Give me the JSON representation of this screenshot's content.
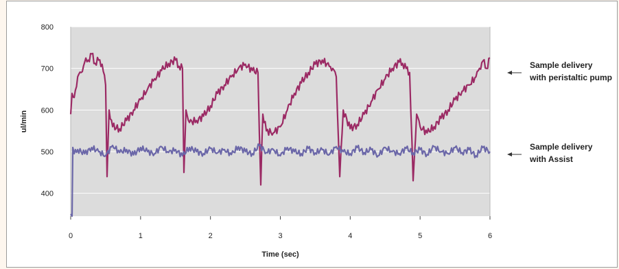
{
  "chart_data": {
    "type": "line",
    "title": "",
    "xlabel": "Time (sec)",
    "ylabel": "ul/min",
    "xlim": [
      0,
      6
    ],
    "ylim": [
      345,
      800
    ],
    "x_ticks": [
      "0",
      "1",
      "2",
      "3",
      "4",
      "5",
      "6"
    ],
    "y_ticks": [
      "400",
      "500",
      "600",
      "700",
      "800"
    ],
    "grid": true,
    "colors": {
      "plot_bg": "#dcdcdc",
      "peristaltic": "#9b2a64",
      "assist": "#6b67a8"
    },
    "series": [
      {
        "name": "Sample delivery with peristaltic pump",
        "legend_lines": [
          "Sample delivery",
          "with peristaltic pump"
        ],
        "x": [
          0,
          0.02,
          0.05,
          0.1,
          0.15,
          0.2,
          0.25,
          0.3,
          0.35,
          0.4,
          0.45,
          0.5,
          0.52,
          0.55,
          0.6,
          0.7,
          0.8,
          0.9,
          1.0,
          1.1,
          1.2,
          1.3,
          1.4,
          1.5,
          1.55,
          1.6,
          1.62,
          1.65,
          1.7,
          1.8,
          1.9,
          2.0,
          2.1,
          2.2,
          2.3,
          2.4,
          2.5,
          2.6,
          2.68,
          2.72,
          2.75,
          2.8,
          2.9,
          3.0,
          3.1,
          3.2,
          3.3,
          3.4,
          3.5,
          3.6,
          3.7,
          3.75,
          3.8,
          3.85,
          3.9,
          4.0,
          4.1,
          4.2,
          4.3,
          4.4,
          4.5,
          4.6,
          4.7,
          4.75,
          4.8,
          4.85,
          4.9,
          4.95,
          5.0,
          5.1,
          5.2,
          5.3,
          5.4,
          5.5,
          5.6,
          5.7,
          5.8,
          5.85,
          5.9,
          5.95,
          6.0
        ],
        "y": [
          590,
          640,
          630,
          680,
          690,
          715,
          720,
          735,
          712,
          720,
          710,
          660,
          440,
          600,
          560,
          555,
          575,
          600,
          625,
          650,
          675,
          695,
          712,
          720,
          705,
          700,
          450,
          600,
          570,
          575,
          585,
          610,
          640,
          660,
          680,
          700,
          710,
          695,
          690,
          420,
          590,
          550,
          545,
          560,
          600,
          640,
          665,
          690,
          710,
          720,
          705,
          700,
          680,
          440,
          600,
          555,
          565,
          590,
          620,
          650,
          675,
          700,
          715,
          712,
          700,
          690,
          430,
          590,
          560,
          545,
          560,
          580,
          600,
          625,
          645,
          660,
          680,
          700,
          718,
          700,
          725
        ]
      },
      {
        "name": "Sample delivery with Assist",
        "legend_lines": [
          "Sample delivery",
          "with Assist"
        ],
        "x": [
          0,
          0.02,
          0.03,
          0.05,
          0.1,
          0.2,
          0.3,
          0.4,
          0.5,
          0.6,
          0.7,
          0.8,
          0.9,
          1.0,
          1.1,
          1.2,
          1.3,
          1.4,
          1.5,
          1.6,
          1.7,
          1.8,
          1.9,
          2.0,
          2.1,
          2.2,
          2.3,
          2.4,
          2.5,
          2.6,
          2.7,
          2.8,
          2.9,
          3.0,
          3.1,
          3.2,
          3.3,
          3.4,
          3.5,
          3.6,
          3.7,
          3.8,
          3.9,
          4.0,
          4.1,
          4.2,
          4.3,
          4.4,
          4.5,
          4.6,
          4.7,
          4.8,
          4.9,
          5.0,
          5.1,
          5.2,
          5.3,
          5.4,
          5.5,
          5.6,
          5.7,
          5.8,
          5.9,
          6.0
        ],
        "y": [
          350,
          345,
          510,
          495,
          505,
          495,
          510,
          500,
          490,
          515,
          498,
          505,
          492,
          510,
          500,
          495,
          512,
          498,
          505,
          490,
          510,
          500,
          495,
          508,
          497,
          505,
          493,
          512,
          500,
          495,
          515,
          498,
          505,
          490,
          510,
          500,
          495,
          508,
          497,
          505,
          493,
          512,
          500,
          495,
          510,
          498,
          505,
          490,
          510,
          500,
          495,
          508,
          497,
          505,
          493,
          512,
          500,
          495,
          510,
          498,
          505,
          490,
          510,
          500
        ]
      }
    ]
  }
}
